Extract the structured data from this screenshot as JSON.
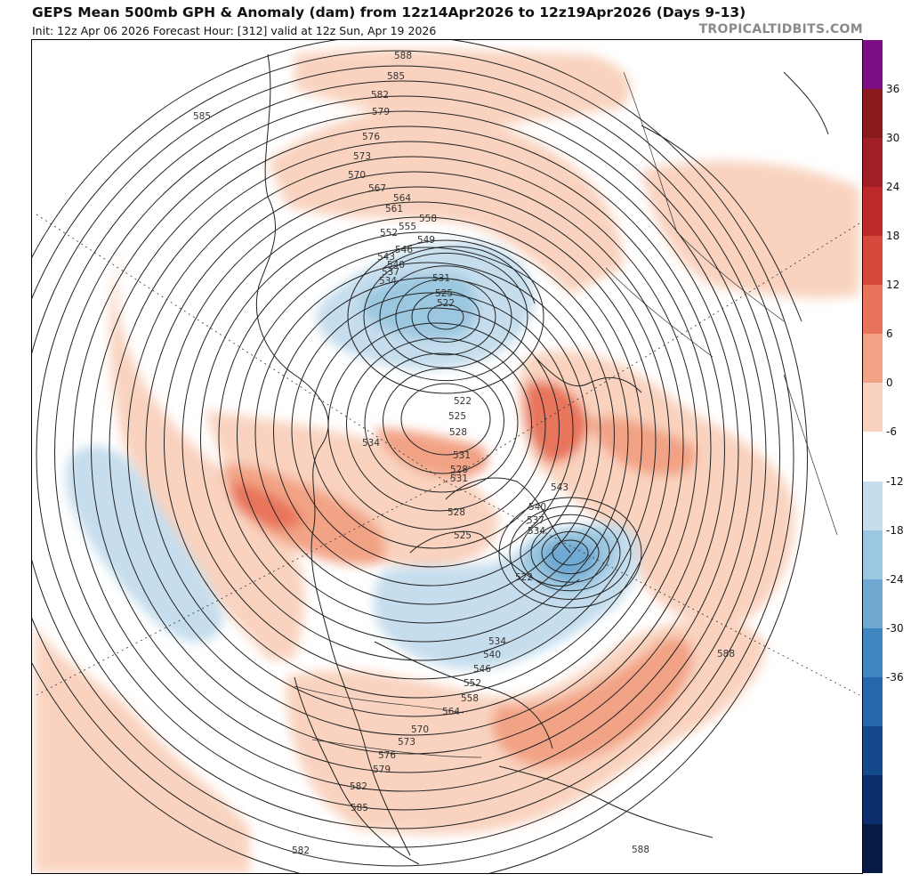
{
  "header": {
    "title": "GEPS Mean 500mb GPH & Anomaly (dam) from 12z14Apr2026 to 12z19Apr2026 (Days 9-13)",
    "subtitle": "Init: 12z Apr 06 2026   Forecast Hour: [312]   valid at 12z Sun, Apr 19 2026",
    "brand": "TROPICALTIDBITS.COM"
  },
  "colorbar": {
    "ticks": [
      "36",
      "30",
      "24",
      "18",
      "12",
      "6",
      "0",
      "-6",
      "-12",
      "-18",
      "-24",
      "-30",
      "-36"
    ],
    "colors": [
      "#7b0c82",
      "#8b1a1a",
      "#a11f24",
      "#be2a2a",
      "#d64a3c",
      "#e8745b",
      "#f2a385",
      "#f9d3bf",
      "#ffffff",
      "#c5dded",
      "#9cc7e0",
      "#6fa9d2",
      "#3f86c1",
      "#2566ad",
      "#144a8c",
      "#0b2d6b",
      "#061a45"
    ]
  },
  "map": {
    "labels": [
      "588",
      "585",
      "582",
      "579",
      "576",
      "573",
      "570",
      "567",
      "564",
      "561",
      "558",
      "555",
      "552",
      "549",
      "546",
      "543",
      "540",
      "537",
      "534",
      "531",
      "528",
      "525",
      "522",
      "543",
      "540",
      "537",
      "534",
      "522",
      "534",
      "540",
      "546",
      "552",
      "558",
      "564",
      "570",
      "573",
      "576",
      "579",
      "582",
      "585",
      "588",
      "582",
      "588",
      "585",
      "522",
      "525",
      "528",
      "531",
      "534",
      "531",
      "528",
      "525"
    ]
  }
}
